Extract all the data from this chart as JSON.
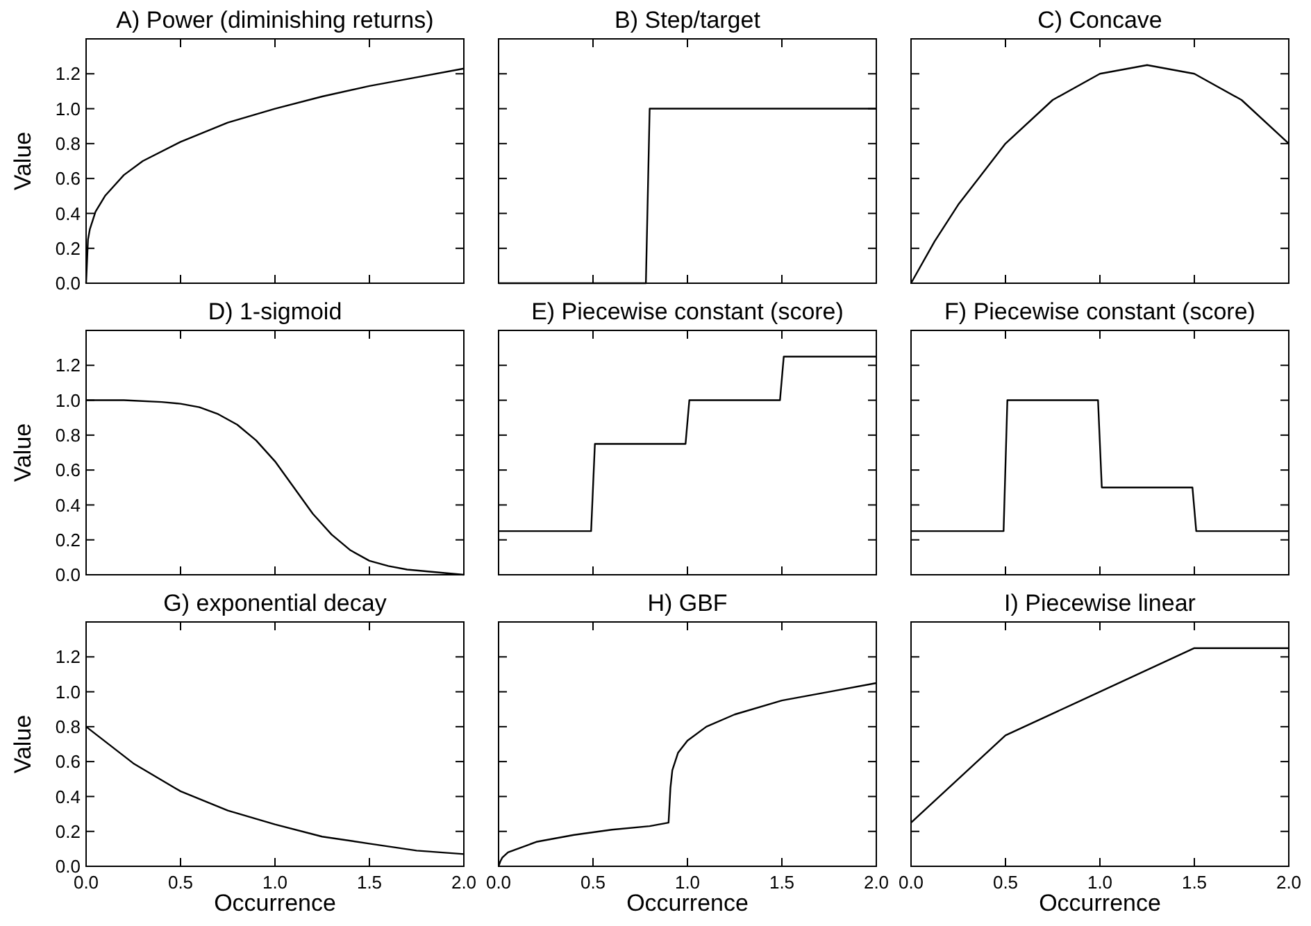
{
  "chart_data": [
    {
      "type": "line",
      "title": "A) Power (diminishing returns)",
      "ylabel": "Value",
      "xlim": [
        0,
        2
      ],
      "ylim": [
        0,
        1.4
      ],
      "xticks": [
        {
          "value": 0,
          "label": null
        },
        {
          "value": 0.5,
          "label": null
        },
        {
          "value": 1,
          "label": null
        },
        {
          "value": 1.5,
          "label": null
        },
        {
          "value": 2,
          "label": null
        }
      ],
      "yticks": [
        {
          "value": 0,
          "label": "0.0"
        },
        {
          "value": 0.2,
          "label": "0.2"
        },
        {
          "value": 0.4,
          "label": "0.4"
        },
        {
          "value": 0.6,
          "label": "0.6"
        },
        {
          "value": 0.8,
          "label": "0.8"
        },
        {
          "value": 1,
          "label": "1.0"
        },
        {
          "value": 1.2,
          "label": "1.2"
        }
      ],
      "tick_labels": "y",
      "series": [
        {
          "color": "#000000",
          "x": [
            0,
            0.01,
            0.02,
            0.05,
            0.1,
            0.2,
            0.3,
            0.5,
            0.75,
            1,
            1.25,
            1.5,
            1.75,
            2
          ],
          "values": [
            0,
            0.25,
            0.31,
            0.41,
            0.5,
            0.62,
            0.7,
            0.81,
            0.92,
            1.0,
            1.07,
            1.13,
            1.18,
            1.23
          ]
        }
      ]
    },
    {
      "type": "line",
      "title": "B) Step/target",
      "xlim": [
        0,
        2
      ],
      "ylim": [
        0,
        1.4
      ],
      "xticks": [
        {
          "value": 0,
          "label": null
        },
        {
          "value": 0.5,
          "label": null
        },
        {
          "value": 1,
          "label": null
        },
        {
          "value": 1.5,
          "label": null
        },
        {
          "value": 2,
          "label": null
        }
      ],
      "yticks": [
        {
          "value": 0,
          "label": null
        },
        {
          "value": 0.2,
          "label": null
        },
        {
          "value": 0.4,
          "label": null
        },
        {
          "value": 0.6,
          "label": null
        },
        {
          "value": 0.8,
          "label": null
        },
        {
          "value": 1,
          "label": null
        },
        {
          "value": 1.2,
          "label": null
        }
      ],
      "tick_labels": false,
      "series": [
        {
          "color": "#000000",
          "x": [
            0,
            0.78,
            0.8,
            2
          ],
          "values": [
            0,
            0,
            1,
            1
          ]
        }
      ]
    },
    {
      "type": "line",
      "title": "C) Concave",
      "xlim": [
        0,
        2
      ],
      "ylim": [
        0,
        1.4
      ],
      "xticks": [
        {
          "value": 0,
          "label": null
        },
        {
          "value": 0.5,
          "label": null
        },
        {
          "value": 1,
          "label": null
        },
        {
          "value": 1.5,
          "label": null
        },
        {
          "value": 2,
          "label": null
        }
      ],
      "yticks": [
        {
          "value": 0,
          "label": null
        },
        {
          "value": 0.2,
          "label": null
        },
        {
          "value": 0.4,
          "label": null
        },
        {
          "value": 0.6,
          "label": null
        },
        {
          "value": 0.8,
          "label": null
        },
        {
          "value": 1,
          "label": null
        },
        {
          "value": 1.2,
          "label": null
        }
      ],
      "tick_labels": false,
      "series": [
        {
          "color": "#000000",
          "x": [
            0,
            0.125,
            0.25,
            0.5,
            0.75,
            1,
            1.25,
            1.5,
            1.75,
            2
          ],
          "values": [
            0,
            0.24,
            0.45,
            0.8,
            1.05,
            1.2,
            1.25,
            1.2,
            1.05,
            0.8
          ]
        }
      ]
    },
    {
      "type": "line",
      "title": "D) 1-sigmoid",
      "ylabel": "Value",
      "xlim": [
        0,
        2
      ],
      "ylim": [
        0,
        1.4
      ],
      "xticks": [
        {
          "value": 0,
          "label": null
        },
        {
          "value": 0.5,
          "label": null
        },
        {
          "value": 1,
          "label": null
        },
        {
          "value": 1.5,
          "label": null
        },
        {
          "value": 2,
          "label": null
        }
      ],
      "yticks": [
        {
          "value": 0,
          "label": "0.0"
        },
        {
          "value": 0.2,
          "label": "0.2"
        },
        {
          "value": 0.4,
          "label": "0.4"
        },
        {
          "value": 0.6,
          "label": "0.6"
        },
        {
          "value": 0.8,
          "label": "0.8"
        },
        {
          "value": 1,
          "label": "1.0"
        },
        {
          "value": 1.2,
          "label": "1.2"
        }
      ],
      "tick_labels": "y",
      "series": [
        {
          "color": "#000000",
          "x": [
            0,
            0.2,
            0.4,
            0.5,
            0.6,
            0.7,
            0.8,
            0.9,
            1.0,
            1.1,
            1.2,
            1.3,
            1.4,
            1.5,
            1.6,
            1.7,
            1.8,
            1.9,
            2
          ],
          "values": [
            1.0,
            1.0,
            0.99,
            0.98,
            0.96,
            0.92,
            0.86,
            0.77,
            0.65,
            0.5,
            0.35,
            0.23,
            0.14,
            0.08,
            0.05,
            0.03,
            0.02,
            0.01,
            0.0
          ]
        }
      ]
    },
    {
      "type": "line",
      "title": "E) Piecewise constant (score)",
      "xlim": [
        0,
        2
      ],
      "ylim": [
        0,
        1.4
      ],
      "xticks": [
        {
          "value": 0,
          "label": null
        },
        {
          "value": 0.5,
          "label": null
        },
        {
          "value": 1,
          "label": null
        },
        {
          "value": 1.5,
          "label": null
        },
        {
          "value": 2,
          "label": null
        }
      ],
      "yticks": [
        {
          "value": 0,
          "label": null
        },
        {
          "value": 0.2,
          "label": null
        },
        {
          "value": 0.4,
          "label": null
        },
        {
          "value": 0.6,
          "label": null
        },
        {
          "value": 0.8,
          "label": null
        },
        {
          "value": 1,
          "label": null
        },
        {
          "value": 1.2,
          "label": null
        }
      ],
      "tick_labels": false,
      "series": [
        {
          "color": "#000000",
          "x": [
            0,
            0.49,
            0.51,
            0.99,
            1.01,
            1.49,
            1.51,
            2
          ],
          "values": [
            0.25,
            0.25,
            0.75,
            0.75,
            1.0,
            1.0,
            1.25,
            1.25
          ]
        }
      ]
    },
    {
      "type": "line",
      "title": "F) Piecewise constant (score)",
      "xlim": [
        0,
        2
      ],
      "ylim": [
        0,
        1.4
      ],
      "xticks": [
        {
          "value": 0,
          "label": null
        },
        {
          "value": 0.5,
          "label": null
        },
        {
          "value": 1,
          "label": null
        },
        {
          "value": 1.5,
          "label": null
        },
        {
          "value": 2,
          "label": null
        }
      ],
      "yticks": [
        {
          "value": 0,
          "label": null
        },
        {
          "value": 0.2,
          "label": null
        },
        {
          "value": 0.4,
          "label": null
        },
        {
          "value": 0.6,
          "label": null
        },
        {
          "value": 0.8,
          "label": null
        },
        {
          "value": 1,
          "label": null
        },
        {
          "value": 1.2,
          "label": null
        }
      ],
      "tick_labels": false,
      "series": [
        {
          "color": "#000000",
          "x": [
            0,
            0.49,
            0.51,
            0.99,
            1.01,
            1.49,
            1.51,
            2
          ],
          "values": [
            0.25,
            0.25,
            1.0,
            1.0,
            0.5,
            0.5,
            0.25,
            0.25
          ]
        }
      ]
    },
    {
      "type": "line",
      "title": "G) exponential decay",
      "ylabel": "Value",
      "xlabel": "Occurrence",
      "xlim": [
        0,
        2
      ],
      "ylim": [
        0,
        1.4
      ],
      "xticks": [
        {
          "value": 0,
          "label": "0.0"
        },
        {
          "value": 0.5,
          "label": "0.5"
        },
        {
          "value": 1,
          "label": "1.0"
        },
        {
          "value": 1.5,
          "label": "1.5"
        },
        {
          "value": 2,
          "label": "2.0"
        }
      ],
      "yticks": [
        {
          "value": 0,
          "label": "0.0"
        },
        {
          "value": 0.2,
          "label": "0.2"
        },
        {
          "value": 0.4,
          "label": "0.4"
        },
        {
          "value": 0.6,
          "label": "0.6"
        },
        {
          "value": 0.8,
          "label": "0.8"
        },
        {
          "value": 1,
          "label": "1.0"
        },
        {
          "value": 1.2,
          "label": "1.2"
        }
      ],
      "series": [
        {
          "color": "#000000",
          "x": [
            0,
            0.25,
            0.5,
            0.75,
            1,
            1.25,
            1.5,
            1.75,
            2
          ],
          "values": [
            0.8,
            0.59,
            0.43,
            0.32,
            0.24,
            0.17,
            0.13,
            0.09,
            0.07
          ]
        }
      ]
    },
    {
      "type": "line",
      "title": "H) GBF",
      "xlabel": "Occurrence",
      "xlim": [
        0,
        2
      ],
      "ylim": [
        0,
        1.4
      ],
      "xticks": [
        {
          "value": 0,
          "label": "0.0"
        },
        {
          "value": 0.5,
          "label": "0.5"
        },
        {
          "value": 1,
          "label": "1.0"
        },
        {
          "value": 1.5,
          "label": "1.5"
        },
        {
          "value": 2,
          "label": "2.0"
        }
      ],
      "yticks": [
        {
          "value": 0,
          "label": null
        },
        {
          "value": 0.2,
          "label": null
        },
        {
          "value": 0.4,
          "label": null
        },
        {
          "value": 0.6,
          "label": null
        },
        {
          "value": 0.8,
          "label": null
        },
        {
          "value": 1,
          "label": null
        },
        {
          "value": 1.2,
          "label": null
        }
      ],
      "tick_labels": "x",
      "series": [
        {
          "color": "#000000",
          "x": [
            0,
            0.01,
            0.02,
            0.05,
            0.1,
            0.2,
            0.4,
            0.6,
            0.8,
            0.9,
            0.91,
            0.92,
            0.95,
            1.0,
            1.1,
            1.25,
            1.5,
            1.75,
            2
          ],
          "values": [
            0,
            0.03,
            0.05,
            0.08,
            0.1,
            0.14,
            0.18,
            0.21,
            0.23,
            0.25,
            0.45,
            0.55,
            0.65,
            0.72,
            0.8,
            0.87,
            0.95,
            1.0,
            1.05
          ]
        }
      ]
    },
    {
      "type": "line",
      "title": "I) Piecewise linear",
      "xlabel": "Occurrence",
      "xlim": [
        0,
        2
      ],
      "ylim": [
        0,
        1.4
      ],
      "xticks": [
        {
          "value": 0,
          "label": "0.0"
        },
        {
          "value": 0.5,
          "label": "0.5"
        },
        {
          "value": 1,
          "label": "1.0"
        },
        {
          "value": 1.5,
          "label": "1.5"
        },
        {
          "value": 2,
          "label": "2.0"
        }
      ],
      "yticks": [
        {
          "value": 0,
          "label": null
        },
        {
          "value": 0.2,
          "label": null
        },
        {
          "value": 0.4,
          "label": null
        },
        {
          "value": 0.6,
          "label": null
        },
        {
          "value": 0.8,
          "label": null
        },
        {
          "value": 1,
          "label": null
        },
        {
          "value": 1.2,
          "label": null
        }
      ],
      "tick_labels": "x",
      "series": [
        {
          "color": "#000000",
          "x": [
            0,
            0.5,
            1.5,
            2
          ],
          "values": [
            0.25,
            0.75,
            1.25,
            1.25
          ]
        }
      ]
    }
  ]
}
